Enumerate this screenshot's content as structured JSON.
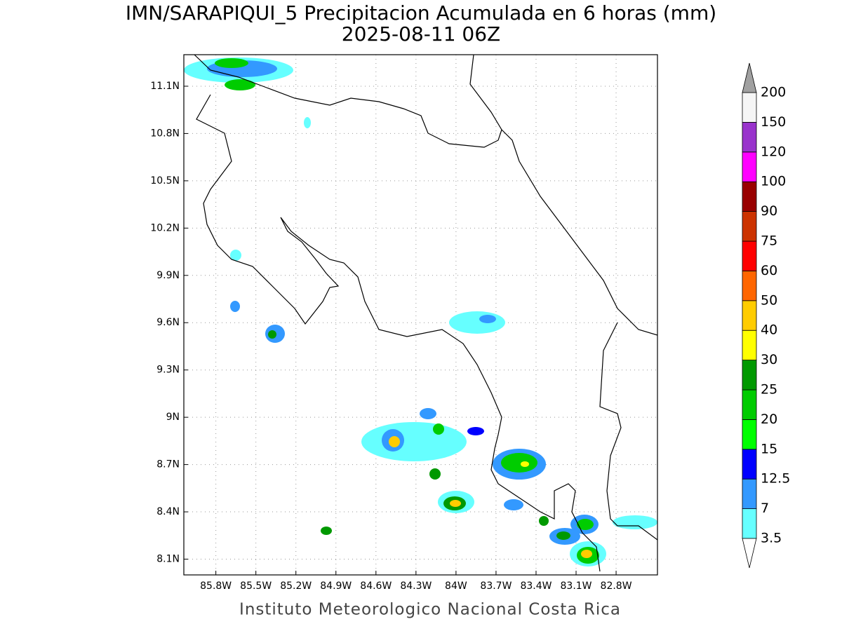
{
  "title": "IMN/SARAPIQUI_5 Precipitacion Acumulada en 6 horas (mm)",
  "subtitle": "2025-08-11 06Z",
  "footer": "Instituto Meteorologico Nacional Costa Rica",
  "map": {
    "xlim": [
      86.04,
      82.49
    ],
    "ylim": [
      8.0,
      11.3
    ],
    "lon_ticks": [
      {
        "value": 85.8,
        "label": "85.8W"
      },
      {
        "value": 85.5,
        "label": "85.5W"
      },
      {
        "value": 85.2,
        "label": "85.2W"
      },
      {
        "value": 84.9,
        "label": "84.9W"
      },
      {
        "value": 84.6,
        "label": "84.6W"
      },
      {
        "value": 84.3,
        "label": "84.3W"
      },
      {
        "value": 84,
        "label": "84W"
      },
      {
        "value": 83.7,
        "label": "83.7W"
      },
      {
        "value": 83.4,
        "label": "83.4W"
      },
      {
        "value": 83.1,
        "label": "83.1W"
      },
      {
        "value": 82.8,
        "label": "82.8W"
      }
    ],
    "lat_ticks": [
      {
        "value": 11.1,
        "label": "11.1N"
      },
      {
        "value": 10.8,
        "label": "10.8N"
      },
      {
        "value": 10.5,
        "label": "10.5N"
      },
      {
        "value": 10.2,
        "label": "10.2N"
      },
      {
        "value": 9.9,
        "label": "9.9N"
      },
      {
        "value": 9.6,
        "label": "9.6N"
      },
      {
        "value": 9.3,
        "label": "9.3N"
      },
      {
        "value": 9,
        "label": "9N"
      },
      {
        "value": 8.7,
        "label": "8.7N"
      },
      {
        "value": 8.4,
        "label": "8.4N"
      },
      {
        "value": 8.1,
        "label": "8.1N"
      }
    ]
  },
  "colorbar": {
    "levels": [
      3.5,
      7,
      12.5,
      15,
      20,
      25,
      30,
      40,
      50,
      60,
      75,
      90,
      100,
      120,
      150,
      200
    ],
    "colors": [
      "#66ffff",
      "#3399ff",
      "#0000ff",
      "#00ff00",
      "#00cc00",
      "#009900",
      "#ffff00",
      "#ffcc00",
      "#ff6600",
      "#ff0000",
      "#cc3300",
      "#990000",
      "#ff00ff",
      "#9933cc",
      "#f5f5f5"
    ],
    "under_color": "#ffffff",
    "over_color": "#a0a0a0"
  }
}
